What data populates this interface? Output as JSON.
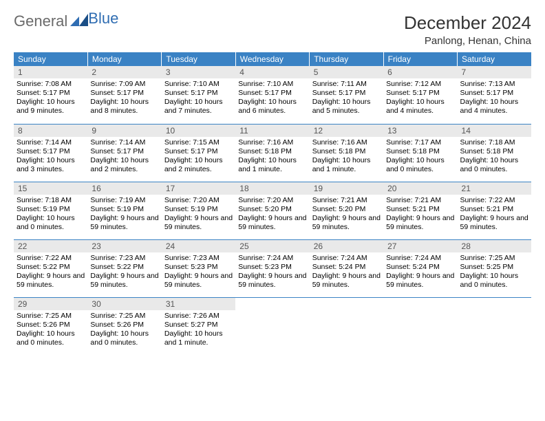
{
  "logo": {
    "part1": "General",
    "part2": "Blue"
  },
  "title": "December 2024",
  "location": "Panlong, Henan, China",
  "header_bg": "#3a82c4",
  "header_text": "#ffffff",
  "daynum_bg": "#e9e9e9",
  "row_border": "#3a82c4",
  "weekdays": [
    "Sunday",
    "Monday",
    "Tuesday",
    "Wednesday",
    "Thursday",
    "Friday",
    "Saturday"
  ],
  "weeks": [
    [
      {
        "n": "1",
        "sr": "7:08 AM",
        "ss": "5:17 PM",
        "dl": "10 hours and 9 minutes."
      },
      {
        "n": "2",
        "sr": "7:09 AM",
        "ss": "5:17 PM",
        "dl": "10 hours and 8 minutes."
      },
      {
        "n": "3",
        "sr": "7:10 AM",
        "ss": "5:17 PM",
        "dl": "10 hours and 7 minutes."
      },
      {
        "n": "4",
        "sr": "7:10 AM",
        "ss": "5:17 PM",
        "dl": "10 hours and 6 minutes."
      },
      {
        "n": "5",
        "sr": "7:11 AM",
        "ss": "5:17 PM",
        "dl": "10 hours and 5 minutes."
      },
      {
        "n": "6",
        "sr": "7:12 AM",
        "ss": "5:17 PM",
        "dl": "10 hours and 4 minutes."
      },
      {
        "n": "7",
        "sr": "7:13 AM",
        "ss": "5:17 PM",
        "dl": "10 hours and 4 minutes."
      }
    ],
    [
      {
        "n": "8",
        "sr": "7:14 AM",
        "ss": "5:17 PM",
        "dl": "10 hours and 3 minutes."
      },
      {
        "n": "9",
        "sr": "7:14 AM",
        "ss": "5:17 PM",
        "dl": "10 hours and 2 minutes."
      },
      {
        "n": "10",
        "sr": "7:15 AM",
        "ss": "5:17 PM",
        "dl": "10 hours and 2 minutes."
      },
      {
        "n": "11",
        "sr": "7:16 AM",
        "ss": "5:18 PM",
        "dl": "10 hours and 1 minute."
      },
      {
        "n": "12",
        "sr": "7:16 AM",
        "ss": "5:18 PM",
        "dl": "10 hours and 1 minute."
      },
      {
        "n": "13",
        "sr": "7:17 AM",
        "ss": "5:18 PM",
        "dl": "10 hours and 0 minutes."
      },
      {
        "n": "14",
        "sr": "7:18 AM",
        "ss": "5:18 PM",
        "dl": "10 hours and 0 minutes."
      }
    ],
    [
      {
        "n": "15",
        "sr": "7:18 AM",
        "ss": "5:19 PM",
        "dl": "10 hours and 0 minutes."
      },
      {
        "n": "16",
        "sr": "7:19 AM",
        "ss": "5:19 PM",
        "dl": "9 hours and 59 minutes."
      },
      {
        "n": "17",
        "sr": "7:20 AM",
        "ss": "5:19 PM",
        "dl": "9 hours and 59 minutes."
      },
      {
        "n": "18",
        "sr": "7:20 AM",
        "ss": "5:20 PM",
        "dl": "9 hours and 59 minutes."
      },
      {
        "n": "19",
        "sr": "7:21 AM",
        "ss": "5:20 PM",
        "dl": "9 hours and 59 minutes."
      },
      {
        "n": "20",
        "sr": "7:21 AM",
        "ss": "5:21 PM",
        "dl": "9 hours and 59 minutes."
      },
      {
        "n": "21",
        "sr": "7:22 AM",
        "ss": "5:21 PM",
        "dl": "9 hours and 59 minutes."
      }
    ],
    [
      {
        "n": "22",
        "sr": "7:22 AM",
        "ss": "5:22 PM",
        "dl": "9 hours and 59 minutes."
      },
      {
        "n": "23",
        "sr": "7:23 AM",
        "ss": "5:22 PM",
        "dl": "9 hours and 59 minutes."
      },
      {
        "n": "24",
        "sr": "7:23 AM",
        "ss": "5:23 PM",
        "dl": "9 hours and 59 minutes."
      },
      {
        "n": "25",
        "sr": "7:24 AM",
        "ss": "5:23 PM",
        "dl": "9 hours and 59 minutes."
      },
      {
        "n": "26",
        "sr": "7:24 AM",
        "ss": "5:24 PM",
        "dl": "9 hours and 59 minutes."
      },
      {
        "n": "27",
        "sr": "7:24 AM",
        "ss": "5:24 PM",
        "dl": "9 hours and 59 minutes."
      },
      {
        "n": "28",
        "sr": "7:25 AM",
        "ss": "5:25 PM",
        "dl": "10 hours and 0 minutes."
      }
    ],
    [
      {
        "n": "29",
        "sr": "7:25 AM",
        "ss": "5:26 PM",
        "dl": "10 hours and 0 minutes."
      },
      {
        "n": "30",
        "sr": "7:25 AM",
        "ss": "5:26 PM",
        "dl": "10 hours and 0 minutes."
      },
      {
        "n": "31",
        "sr": "7:26 AM",
        "ss": "5:27 PM",
        "dl": "10 hours and 1 minute."
      },
      null,
      null,
      null,
      null
    ]
  ],
  "labels": {
    "sunrise": "Sunrise:",
    "sunset": "Sunset:",
    "daylight": "Daylight:"
  }
}
